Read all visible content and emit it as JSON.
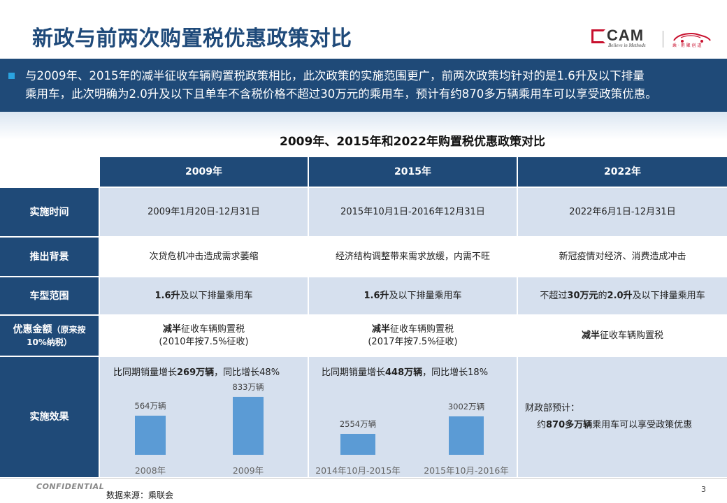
{
  "title": "新政与前两次购置税优惠政策对比",
  "logo": {
    "brand": "CAM",
    "tagline": "Believe in Methods",
    "secondary_tag": "乘 · 用 聚 创 道"
  },
  "summary": {
    "line1": "与2009年、2015年的减半征收车辆购置税政策相比，此次政策的实施范围更广，前两次政策均针对的是1.6升及以下排量",
    "line2": "乘用车，此次明确为2.0升及以下且单车不含税价格不超过30万元的乘用车，预计有约870多万辆乘用车可以享受政策优惠。"
  },
  "table": {
    "title": "2009年、2015年和2022年购置税优惠政策对比",
    "columns": [
      "2009年",
      "2015年",
      "2022年"
    ],
    "rows": {
      "implement_time": {
        "label": "实施时间",
        "values": [
          "2009年1月20日-12月31日",
          "2015年10月1日-2016年12月31日",
          "2022年6月1日-12月31日"
        ]
      },
      "background": {
        "label": "推出背景",
        "values": [
          "次贷危机冲击造成需求萎缩",
          "经济结构调整带来需求放缓，内需不旺",
          "新冠疫情对经济、消费造成冲击"
        ]
      },
      "scope": {
        "label": "车型范围",
        "values": [
          {
            "bold": "1.6升",
            "rest": "及以下排量乘用车"
          },
          {
            "bold": "1.6升",
            "rest": "及以下排量乘用车"
          },
          {
            "pre": "不超过",
            "bold1": "30万元",
            "mid": "的",
            "bold2": "2.0升",
            "rest": "及以下排量乘用车"
          }
        ]
      },
      "discount": {
        "label_main": "优惠金额",
        "label_note_1": "（原来按",
        "label_note_2": "10%纳税）",
        "values": [
          {
            "bold": "减半",
            "rest": "征收车辆购置税",
            "note": "(2010年按7.5%征收)"
          },
          {
            "bold": "减半",
            "rest": "征收车辆购置税",
            "note": "(2017年按7.5%征收)"
          },
          {
            "bold": "减半",
            "rest": "征收车辆购置税"
          }
        ]
      },
      "effect": {
        "label": "实施效果",
        "col2009": {
          "pre": "比同期销量增长",
          "bold": "269万辆",
          "post": "，同比增长48%"
        },
        "col2015": {
          "pre": "比同期销量增长",
          "bold": "448万辆",
          "post": "，同比增长18%"
        },
        "col2022": {
          "line1": "财政部预计：",
          "pre": "约",
          "bold": "870多万辆",
          "post": "乘用车可以享受政策优惠"
        }
      }
    }
  },
  "chart_data": [
    {
      "type": "bar",
      "categories": [
        "2008年",
        "2009年"
      ],
      "values": [
        564,
        833
      ],
      "data_labels": [
        "564万辆",
        "833万辆"
      ],
      "color": "#5b9bd5"
    },
    {
      "type": "bar",
      "categories": [
        "2014年10月-2015年",
        "2015年10月-2016年"
      ],
      "values": [
        2554,
        3002
      ],
      "data_labels": [
        "2554万辆",
        "3002万辆"
      ],
      "color": "#5b9bd5"
    }
  ],
  "footer": {
    "confidential": "CONFIDENTIAL",
    "source": "数据来源：乘联会",
    "page": "3"
  }
}
